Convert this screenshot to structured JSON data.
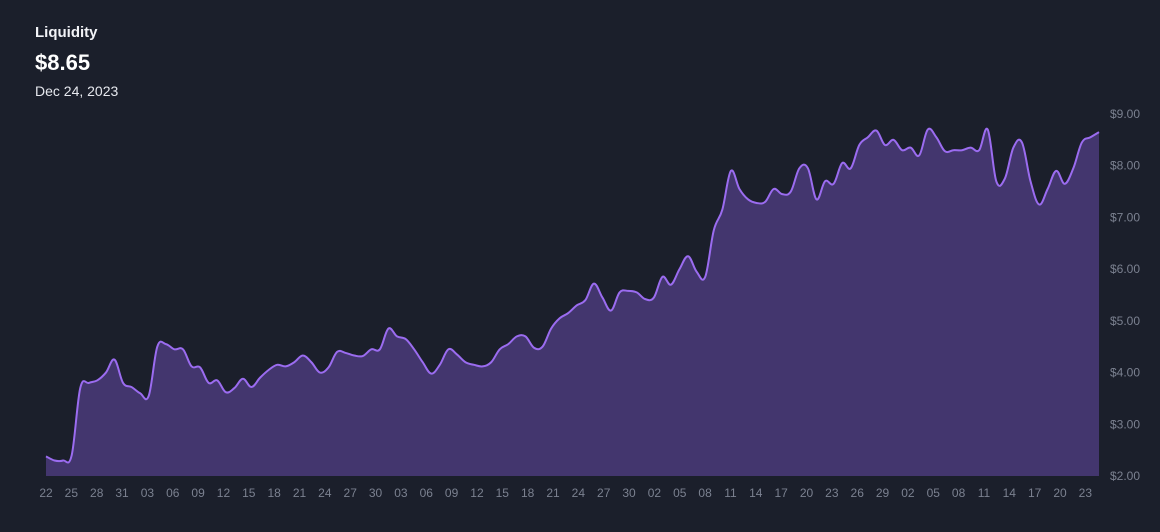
{
  "header": {
    "title": "Liquidity",
    "value": "$8.65",
    "date": "Dec 24, 2023"
  },
  "colors": {
    "background": "#1b1f2b",
    "line": "#9b6cf0",
    "area": "#43366e",
    "tick_text": "#7b8190"
  },
  "chart_data": {
    "type": "area",
    "title": "Liquidity",
    "xlabel": "",
    "ylabel": "",
    "ylim": [
      2,
      9
    ],
    "grid": false,
    "legend": "none",
    "y_ticks": [
      "$9.00",
      "$8.00",
      "$7.00",
      "$6.00",
      "$5.00",
      "$4.00",
      "$3.00",
      "$2.00"
    ],
    "y_tick_values": [
      9,
      8,
      7,
      6,
      5,
      4,
      3,
      2
    ],
    "x_ticks": [
      "22",
      "25",
      "28",
      "31",
      "03",
      "06",
      "09",
      "12",
      "15",
      "18",
      "21",
      "24",
      "27",
      "30",
      "03",
      "06",
      "09",
      "12",
      "15",
      "18",
      "21",
      "24",
      "27",
      "30",
      "02",
      "05",
      "08",
      "11",
      "14",
      "17",
      "20",
      "23",
      "26",
      "29",
      "02",
      "05",
      "08",
      "11",
      "14",
      "17",
      "20",
      "23"
    ],
    "values": [
      2.38,
      2.3,
      2.3,
      2.4,
      3.7,
      3.8,
      3.85,
      4.0,
      4.25,
      3.8,
      3.72,
      3.6,
      3.55,
      4.5,
      4.55,
      4.45,
      4.45,
      4.12,
      4.1,
      3.8,
      3.85,
      3.62,
      3.7,
      3.88,
      3.72,
      3.9,
      4.05,
      4.15,
      4.12,
      4.2,
      4.33,
      4.2,
      4.0,
      4.1,
      4.4,
      4.38,
      4.33,
      4.32,
      4.45,
      4.45,
      4.85,
      4.7,
      4.65,
      4.45,
      4.2,
      3.98,
      4.15,
      4.45,
      4.35,
      4.2,
      4.15,
      4.12,
      4.2,
      4.45,
      4.55,
      4.7,
      4.7,
      4.48,
      4.5,
      4.85,
      5.05,
      5.15,
      5.3,
      5.4,
      5.72,
      5.45,
      5.2,
      5.55,
      5.58,
      5.55,
      5.42,
      5.45,
      5.85,
      5.7,
      6.0,
      6.25,
      5.95,
      5.85,
      6.75,
      7.15,
      7.9,
      7.55,
      7.35,
      7.28,
      7.3,
      7.55,
      7.45,
      7.5,
      7.95,
      7.95,
      7.35,
      7.7,
      7.65,
      8.05,
      7.95,
      8.4,
      8.55,
      8.68,
      8.4,
      8.5,
      8.3,
      8.35,
      8.2,
      8.7,
      8.55,
      8.28,
      8.3,
      8.3,
      8.35,
      8.3,
      8.7,
      7.7,
      7.75,
      8.35,
      8.45,
      7.7,
      7.25,
      7.55,
      7.9,
      7.65,
      7.95,
      8.45,
      8.55,
      8.65
    ]
  }
}
